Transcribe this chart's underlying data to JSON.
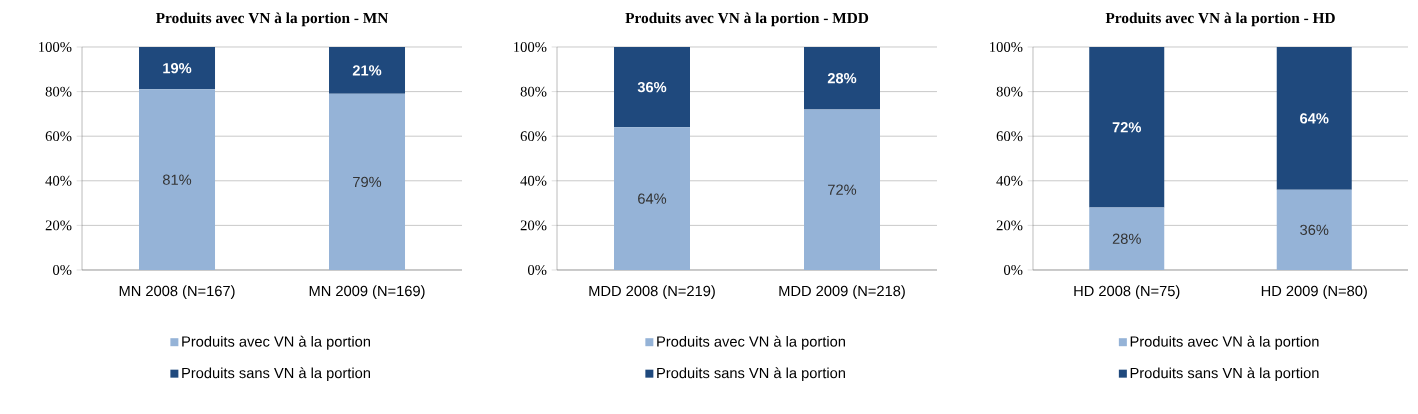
{
  "chart_data": [
    {
      "type": "bar",
      "stacked": true,
      "title": "Produits avec VN à la portion - MN",
      "categories": [
        "MN 2008 (N=167)",
        "MN 2009 (N=169)"
      ],
      "series": [
        {
          "name": "Produits avec VN à la portion",
          "color": "#95b3d7",
          "values": [
            81,
            79
          ],
          "value_labels": [
            "81%",
            "79%"
          ]
        },
        {
          "name": "Produits sans VN à la portion",
          "color": "#1f497d",
          "values": [
            19,
            21
          ],
          "value_labels": [
            "19%",
            "21%"
          ]
        }
      ],
      "ylim": [
        0,
        100
      ],
      "yticks": [
        {
          "value": 0,
          "label": "0%"
        },
        {
          "value": 20,
          "label": "20%"
        },
        {
          "value": 40,
          "label": "40%"
        },
        {
          "value": 60,
          "label": "60%"
        },
        {
          "value": 80,
          "label": "80%"
        },
        {
          "value": 100,
          "label": "100%"
        }
      ],
      "grid": "y",
      "legend": "bottom"
    },
    {
      "type": "bar",
      "stacked": true,
      "title": "Produits avec VN à la portion - MDD",
      "categories": [
        "MDD 2008 (N=219)",
        "MDD 2009 (N=218)"
      ],
      "series": [
        {
          "name": "Produits avec VN à la portion",
          "color": "#95b3d7",
          "values": [
            64,
            72
          ],
          "value_labels": [
            "64%",
            "72%"
          ]
        },
        {
          "name": "Produits sans VN à la portion",
          "color": "#1f497d",
          "values": [
            36,
            28
          ],
          "value_labels": [
            "36%",
            "28%"
          ]
        }
      ],
      "ylim": [
        0,
        100
      ],
      "yticks": [
        {
          "value": 0,
          "label": "0%"
        },
        {
          "value": 20,
          "label": "20%"
        },
        {
          "value": 40,
          "label": "40%"
        },
        {
          "value": 60,
          "label": "60%"
        },
        {
          "value": 80,
          "label": "80%"
        },
        {
          "value": 100,
          "label": "100%"
        }
      ],
      "grid": "y",
      "legend": "bottom"
    },
    {
      "type": "bar",
      "stacked": true,
      "title": "Produits avec VN à la portion - HD",
      "categories": [
        "HD 2008 (N=75)",
        "HD 2009 (N=80)"
      ],
      "series": [
        {
          "name": "Produits avec VN à la portion",
          "color": "#95b3d7",
          "values": [
            28,
            36
          ],
          "value_labels": [
            "28%",
            "36%"
          ]
        },
        {
          "name": "Produits sans VN à la portion",
          "color": "#1f497d",
          "values": [
            72,
            64
          ],
          "value_labels": [
            "72%",
            "64%"
          ]
        }
      ],
      "ylim": [
        0,
        100
      ],
      "yticks": [
        {
          "value": 0,
          "label": "0%"
        },
        {
          "value": 20,
          "label": "20%"
        },
        {
          "value": 40,
          "label": "40%"
        },
        {
          "value": 60,
          "label": "60%"
        },
        {
          "value": 80,
          "label": "80%"
        },
        {
          "value": 100,
          "label": "100%"
        }
      ],
      "grid": "y",
      "legend": "bottom"
    }
  ]
}
